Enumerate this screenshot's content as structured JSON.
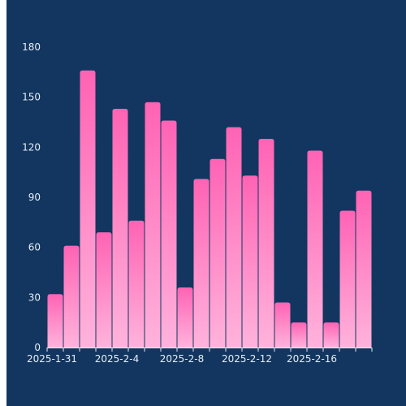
{
  "chart_data": {
    "type": "bar",
    "title": "",
    "xlabel": "",
    "ylabel": "",
    "ylim": [
      0,
      180
    ],
    "y_ticks": [
      0,
      30,
      60,
      90,
      120,
      150,
      180
    ],
    "x": [
      "2025-1-31",
      "2025-2-1",
      "2025-2-2",
      "2025-2-3",
      "2025-2-4",
      "2025-2-5",
      "2025-2-6",
      "2025-2-7",
      "2025-2-8",
      "2025-2-9",
      "2025-2-10",
      "2025-2-11",
      "2025-2-12",
      "2025-2-13",
      "2025-2-14",
      "2025-2-15",
      "2025-2-16",
      "2025-2-17",
      "2025-2-18",
      "2025-2-19"
    ],
    "x_tick_labels": [
      "2025-1-31",
      "2025-2-4",
      "2025-2-8",
      "2025-2-12",
      "2025-2-16"
    ],
    "values": [
      32,
      61,
      166,
      69,
      143,
      76,
      147,
      136,
      36,
      101,
      113,
      132,
      103,
      125,
      27,
      15,
      118,
      15,
      82,
      94
    ],
    "grid": false,
    "colors": {
      "background": "#12365f",
      "bar_top": "#ff63b4",
      "bar_bottom": "#ffb3dc",
      "axis": "#e7eef8",
      "text": "#e7eef8"
    }
  }
}
